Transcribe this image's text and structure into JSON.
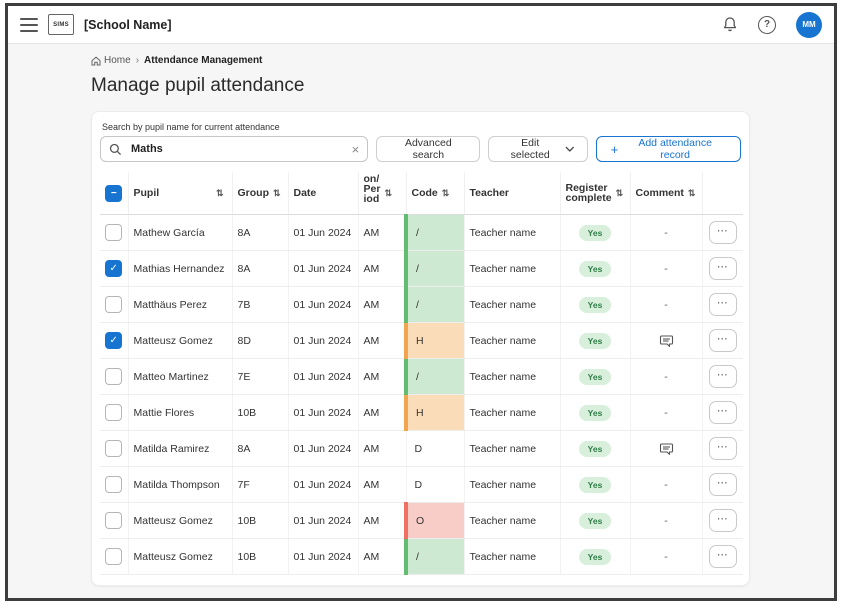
{
  "topbar": {
    "logo": "SIMS",
    "school_name": "[School Name]",
    "avatar_initials": "MM"
  },
  "breadcrumb": {
    "home_label": "Home",
    "separator": "›",
    "current": "Attendance Management"
  },
  "page_title": "Manage pupil attendance",
  "search": {
    "label": "Search by pupil name for current attendance",
    "value": "Maths",
    "clear": "×",
    "advanced_label": "Advanced search",
    "edit_selected_label": "Edit selected",
    "add_plus": "+",
    "add_label": "Add attendance record"
  },
  "icons": {
    "sort": "⇅",
    "check": "✓",
    "indeterminate": "−",
    "ellipsis": "⋯",
    "help": "?"
  },
  "table": {
    "columns": [
      {
        "label": "Pupil",
        "sortable": true
      },
      {
        "label": "Group",
        "sortable": true
      },
      {
        "label": "Date",
        "sortable": false
      },
      {
        "label": "on/\nPer\niod",
        "sortable": true
      },
      {
        "label": "Code",
        "sortable": true
      },
      {
        "label": "Teacher",
        "sortable": false
      },
      {
        "label": "Register\ncomplete",
        "sortable": true
      },
      {
        "label": "Comment",
        "sortable": true
      }
    ],
    "rows": [
      {
        "pupil": "Mathew García",
        "group": "8A",
        "date": "01 Jun 2024",
        "period": "AM",
        "code": "/",
        "code_color": "green",
        "checked": false,
        "teacher": "Teacher name",
        "register": "Yes",
        "comment": "-",
        "has_comment": false
      },
      {
        "pupil": "Mathias Hernandez",
        "group": "8A",
        "date": "01 Jun 2024",
        "period": "AM",
        "code": "/",
        "code_color": "green",
        "checked": true,
        "teacher": "Teacher name",
        "register": "Yes",
        "comment": "-",
        "has_comment": false
      },
      {
        "pupil": "Matthäus Perez",
        "group": "7B",
        "date": "01 Jun 2024",
        "period": "AM",
        "code": "/",
        "code_color": "green",
        "checked": false,
        "teacher": "Teacher name",
        "register": "Yes",
        "comment": "-",
        "has_comment": false
      },
      {
        "pupil": "Matteusz Gomez",
        "group": "8D",
        "date": "01 Jun 2024",
        "period": "AM",
        "code": "H",
        "code_color": "orange",
        "checked": true,
        "teacher": "Teacher name",
        "register": "Yes",
        "comment": "",
        "has_comment": true
      },
      {
        "pupil": "Matteo Martinez",
        "group": "7E",
        "date": "01 Jun 2024",
        "period": "AM",
        "code": "/",
        "code_color": "green",
        "checked": false,
        "teacher": "Teacher name",
        "register": "Yes",
        "comment": "-",
        "has_comment": false
      },
      {
        "pupil": "Mattie Flores",
        "group": "10B",
        "date": "01 Jun 2024",
        "period": "AM",
        "code": "H",
        "code_color": "orange",
        "checked": false,
        "teacher": "Teacher name",
        "register": "Yes",
        "comment": "-",
        "has_comment": false
      },
      {
        "pupil": "Matilda Ramirez",
        "group": "8A",
        "date": "01 Jun 2024",
        "period": "AM",
        "code": "D",
        "code_color": "none",
        "checked": false,
        "teacher": "Teacher name",
        "register": "Yes",
        "comment": "",
        "has_comment": true
      },
      {
        "pupil": "Matilda Thompson",
        "group": "7F",
        "date": "01 Jun 2024",
        "period": "AM",
        "code": "D",
        "code_color": "none",
        "checked": false,
        "teacher": "Teacher name",
        "register": "Yes",
        "comment": "-",
        "has_comment": false
      },
      {
        "pupil": "Matteusz Gomez",
        "group": "10B",
        "date": "01 Jun 2024",
        "period": "AM",
        "code": "O",
        "code_color": "red",
        "checked": false,
        "teacher": "Teacher name",
        "register": "Yes",
        "comment": "-",
        "has_comment": false
      },
      {
        "pupil": "Matteusz Gomez",
        "group": "10B",
        "date": "01 Jun 2024",
        "period": "AM",
        "code": "/",
        "code_color": "green",
        "checked": false,
        "teacher": "Teacher name",
        "register": "Yes",
        "comment": "-",
        "has_comment": false
      }
    ]
  },
  "colors": {
    "accent_blue": "#1774d1",
    "code_green_bg": "#cde9d1",
    "code_green_bar": "#63bd70",
    "code_orange_bg": "#fbdcb8",
    "code_orange_bar": "#f2a44f",
    "code_red_bg": "#f8ccc7",
    "code_red_bar": "#ee7163",
    "yes_pill_bg": "#d8efdc",
    "yes_pill_text": "#2e7d45"
  }
}
